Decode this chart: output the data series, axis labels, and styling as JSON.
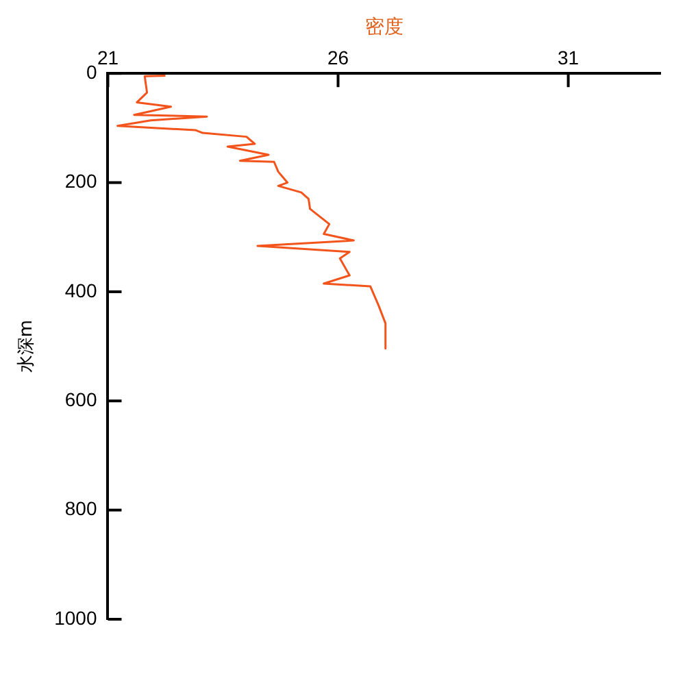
{
  "chart_data": {
    "type": "line",
    "xlabel": "密度",
    "ylabel": "水深m",
    "xlim": [
      21,
      33
    ],
    "xticks": [
      21,
      26,
      31
    ],
    "ylim": [
      1000,
      0
    ],
    "yticks": [
      0,
      200,
      400,
      600,
      800,
      1000
    ],
    "grid": false,
    "legend": false,
    "marker": "none",
    "line_style": "solid",
    "series": [
      {
        "color": "#f2541b",
        "x": [
          22.25,
          21.8,
          21.85,
          21.63,
          22.37,
          21.57,
          23.15,
          21.93,
          21.21,
          22.91,
          23.06,
          24.01,
          24.19,
          23.6,
          24.49,
          23.87,
          24.61,
          24.7,
          24.9,
          24.7,
          25.2,
          25.36,
          25.39,
          25.81,
          25.69,
          26.34,
          24.25,
          26.25,
          26.04,
          26.25,
          25.69,
          26.7,
          26.88,
          27.03,
          27.03
        ],
        "values": [
          4,
          5,
          35,
          53,
          61,
          76,
          79,
          86,
          96,
          104,
          109,
          116,
          129,
          134,
          149,
          160,
          162,
          180,
          200,
          206,
          218,
          230,
          248,
          276,
          294,
          306,
          316,
          327,
          339,
          370,
          385,
          390,
          425,
          458,
          504
        ]
      }
    ]
  }
}
